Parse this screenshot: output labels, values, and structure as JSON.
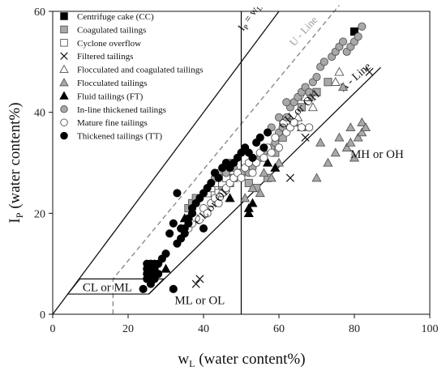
{
  "chart_data": {
    "type": "scatter",
    "xlabel": {
      "main": "w",
      "sub": "L",
      "rest": " (water content%)"
    },
    "ylabel": {
      "main": "I",
      "sub": "P",
      "rest": " (water content%)"
    },
    "xlim": [
      0,
      100
    ],
    "ylim": [
      0,
      60
    ],
    "xticks": [
      0,
      20,
      40,
      60,
      80,
      100
    ],
    "yticks": [
      0,
      20,
      40,
      60
    ],
    "grid": false,
    "legend_position": "top-left",
    "lines": [
      {
        "name": "I_P = w_L",
        "label_main": "I",
        "label_sub": "P",
        "label_rest": " = w",
        "label_sub2": "L",
        "points": [
          [
            0,
            0
          ],
          [
            60,
            60
          ]
        ],
        "style": "solid"
      },
      {
        "name": "U - Line",
        "label": "U - Line",
        "points": [
          [
            16,
            0
          ],
          [
            16,
            7
          ],
          [
            76,
            61.2
          ]
        ],
        "style": "dashed"
      },
      {
        "name": "A - Line",
        "label": "A - Line",
        "points": [
          [
            25.5,
            4
          ],
          [
            87,
            48.9
          ]
        ],
        "style": "solid"
      },
      {
        "name": "w_L = 50",
        "points": [
          [
            50,
            0
          ],
          [
            50,
            60
          ]
        ],
        "style": "solid"
      }
    ],
    "zones": [
      "CH or OH",
      "CL or OL",
      "MH or OH",
      "ML or OL",
      "CL or ML"
    ],
    "series": [
      {
        "name": "Centrifuge cake (CC)",
        "marker": "square",
        "fill": "#000000",
        "points": [
          [
            80,
            56
          ]
        ]
      },
      {
        "name": "Coagulated tailings",
        "marker": "square",
        "fill": "#a8a8a8",
        "points": [
          [
            36,
            21
          ],
          [
            37,
            22
          ],
          [
            38,
            23
          ],
          [
            45,
            25
          ],
          [
            47,
            26
          ],
          [
            48,
            27
          ],
          [
            50,
            28
          ],
          [
            52,
            26
          ],
          [
            54,
            25
          ],
          [
            57,
            27
          ],
          [
            59,
            32
          ],
          [
            61,
            35
          ],
          [
            64,
            38
          ],
          [
            66,
            41
          ],
          [
            68,
            43
          ],
          [
            70,
            44
          ],
          [
            73,
            46
          ]
        ]
      },
      {
        "name": "Cyclone overflow",
        "marker": "square",
        "fill": "#ffffff",
        "points": [
          [
            41,
            24
          ],
          [
            42,
            25
          ],
          [
            43,
            26
          ],
          [
            44,
            24
          ],
          [
            45,
            26
          ],
          [
            46,
            27
          ]
        ]
      },
      {
        "name": "Filtered tailings",
        "marker": "x",
        "fill": "none",
        "points": [
          [
            38,
            6
          ],
          [
            39,
            7
          ],
          [
            63,
            27
          ],
          [
            67,
            35
          ],
          [
            84,
            48
          ]
        ]
      },
      {
        "name": "Flocculated and coagulated tailings",
        "marker": "triangle",
        "fill": "#ffffff",
        "points": [
          [
            65,
            39
          ],
          [
            67,
            43
          ],
          [
            69,
            41
          ],
          [
            75,
            46
          ],
          [
            76,
            48
          ]
        ]
      },
      {
        "name": "Flocculated tailings",
        "marker": "triangle",
        "fill": "#a8a8a8",
        "points": [
          [
            51,
            23
          ],
          [
            53,
            25
          ],
          [
            55,
            24
          ],
          [
            56,
            28
          ],
          [
            58,
            27
          ],
          [
            60,
            30
          ],
          [
            66,
            37
          ],
          [
            70,
            27
          ],
          [
            71,
            34
          ],
          [
            73,
            30
          ],
          [
            75,
            32
          ],
          [
            76,
            35
          ],
          [
            78,
            33
          ],
          [
            79,
            34
          ],
          [
            79,
            37
          ],
          [
            80,
            31
          ],
          [
            81,
            35
          ],
          [
            82,
            38
          ],
          [
            82,
            36
          ],
          [
            83,
            37
          ],
          [
            77,
            45
          ]
        ]
      },
      {
        "name": "Fluid tailings (FT)",
        "marker": "triangle",
        "fill": "#000000",
        "points": [
          [
            30,
            9
          ],
          [
            35,
            19
          ],
          [
            47,
            23
          ],
          [
            52,
            21
          ],
          [
            52,
            20
          ],
          [
            53,
            22
          ],
          [
            55,
            31
          ],
          [
            57,
            30
          ],
          [
            59,
            29
          ]
        ]
      },
      {
        "name": "In-line thickened tailings",
        "marker": "circle",
        "fill": "#a8a8a8",
        "points": [
          [
            43,
            27
          ],
          [
            44,
            28
          ],
          [
            45,
            29
          ],
          [
            46,
            28
          ],
          [
            47,
            30
          ],
          [
            48,
            29
          ],
          [
            52,
            28
          ],
          [
            53,
            29
          ],
          [
            55,
            31
          ],
          [
            56,
            32
          ],
          [
            58,
            33
          ],
          [
            59,
            34
          ],
          [
            60,
            36
          ],
          [
            61,
            37
          ],
          [
            62,
            39
          ],
          [
            63,
            41
          ],
          [
            64,
            42
          ],
          [
            65,
            43
          ],
          [
            66,
            44
          ],
          [
            67,
            45
          ],
          [
            68,
            44
          ],
          [
            69,
            46
          ],
          [
            70,
            47
          ],
          [
            71,
            49
          ],
          [
            72,
            50
          ],
          [
            74,
            51
          ],
          [
            75,
            52
          ],
          [
            76,
            53
          ],
          [
            77,
            54
          ],
          [
            78,
            52
          ],
          [
            79,
            53
          ],
          [
            80,
            54
          ],
          [
            81,
            55
          ],
          [
            82,
            57
          ],
          [
            58,
            37
          ],
          [
            60,
            39
          ],
          [
            62,
            42
          ]
        ]
      },
      {
        "name": "Mature fine tailings",
        "marker": "circle",
        "fill": "#ffffff",
        "points": [
          [
            36,
            17
          ],
          [
            37,
            18
          ],
          [
            38,
            19
          ],
          [
            40,
            21
          ],
          [
            41,
            20
          ],
          [
            42,
            22
          ],
          [
            43,
            23
          ],
          [
            44,
            22
          ],
          [
            45,
            24
          ],
          [
            46,
            25
          ],
          [
            47,
            26
          ],
          [
            48,
            27
          ],
          [
            49,
            28
          ],
          [
            50,
            27
          ],
          [
            51,
            29
          ],
          [
            52,
            30
          ],
          [
            53,
            28
          ],
          [
            54,
            30
          ],
          [
            55,
            32
          ],
          [
            56,
            31
          ],
          [
            57,
            33
          ],
          [
            58,
            32
          ],
          [
            59,
            35
          ],
          [
            60,
            33
          ],
          [
            62,
            36
          ],
          [
            63,
            37
          ],
          [
            64,
            38
          ],
          [
            66,
            37
          ],
          [
            68,
            37
          ]
        ]
      },
      {
        "name": "Thickened tailings (TT)",
        "marker": "circle",
        "fill": "#000000",
        "points": [
          [
            24,
            5
          ],
          [
            25,
            7
          ],
          [
            25,
            8
          ],
          [
            25,
            9
          ],
          [
            25,
            10
          ],
          [
            26,
            6
          ],
          [
            26,
            8
          ],
          [
            26,
            9
          ],
          [
            26,
            10
          ],
          [
            27,
            7
          ],
          [
            27,
            9
          ],
          [
            27,
            10
          ],
          [
            28,
            8
          ],
          [
            28,
            10
          ],
          [
            29,
            11
          ],
          [
            30,
            12
          ],
          [
            31,
            16
          ],
          [
            32,
            5
          ],
          [
            32,
            18
          ],
          [
            33,
            14
          ],
          [
            34,
            15
          ],
          [
            35,
            16
          ],
          [
            35,
            17
          ],
          [
            36,
            18
          ],
          [
            36,
            19
          ],
          [
            37,
            20
          ],
          [
            37,
            21
          ],
          [
            38,
            22
          ],
          [
            39,
            23
          ],
          [
            40,
            24
          ],
          [
            41,
            25
          ],
          [
            42,
            26
          ],
          [
            43,
            28
          ],
          [
            44,
            27
          ],
          [
            45,
            29
          ],
          [
            46,
            30
          ],
          [
            47,
            29
          ],
          [
            48,
            30
          ],
          [
            49,
            31
          ],
          [
            50,
            32
          ],
          [
            51,
            33
          ],
          [
            52,
            32
          ],
          [
            53,
            31
          ],
          [
            54,
            34
          ],
          [
            55,
            35
          ],
          [
            56,
            33
          ],
          [
            57,
            36
          ],
          [
            33,
            24
          ],
          [
            34,
            17
          ],
          [
            40,
            17
          ]
        ]
      }
    ]
  }
}
